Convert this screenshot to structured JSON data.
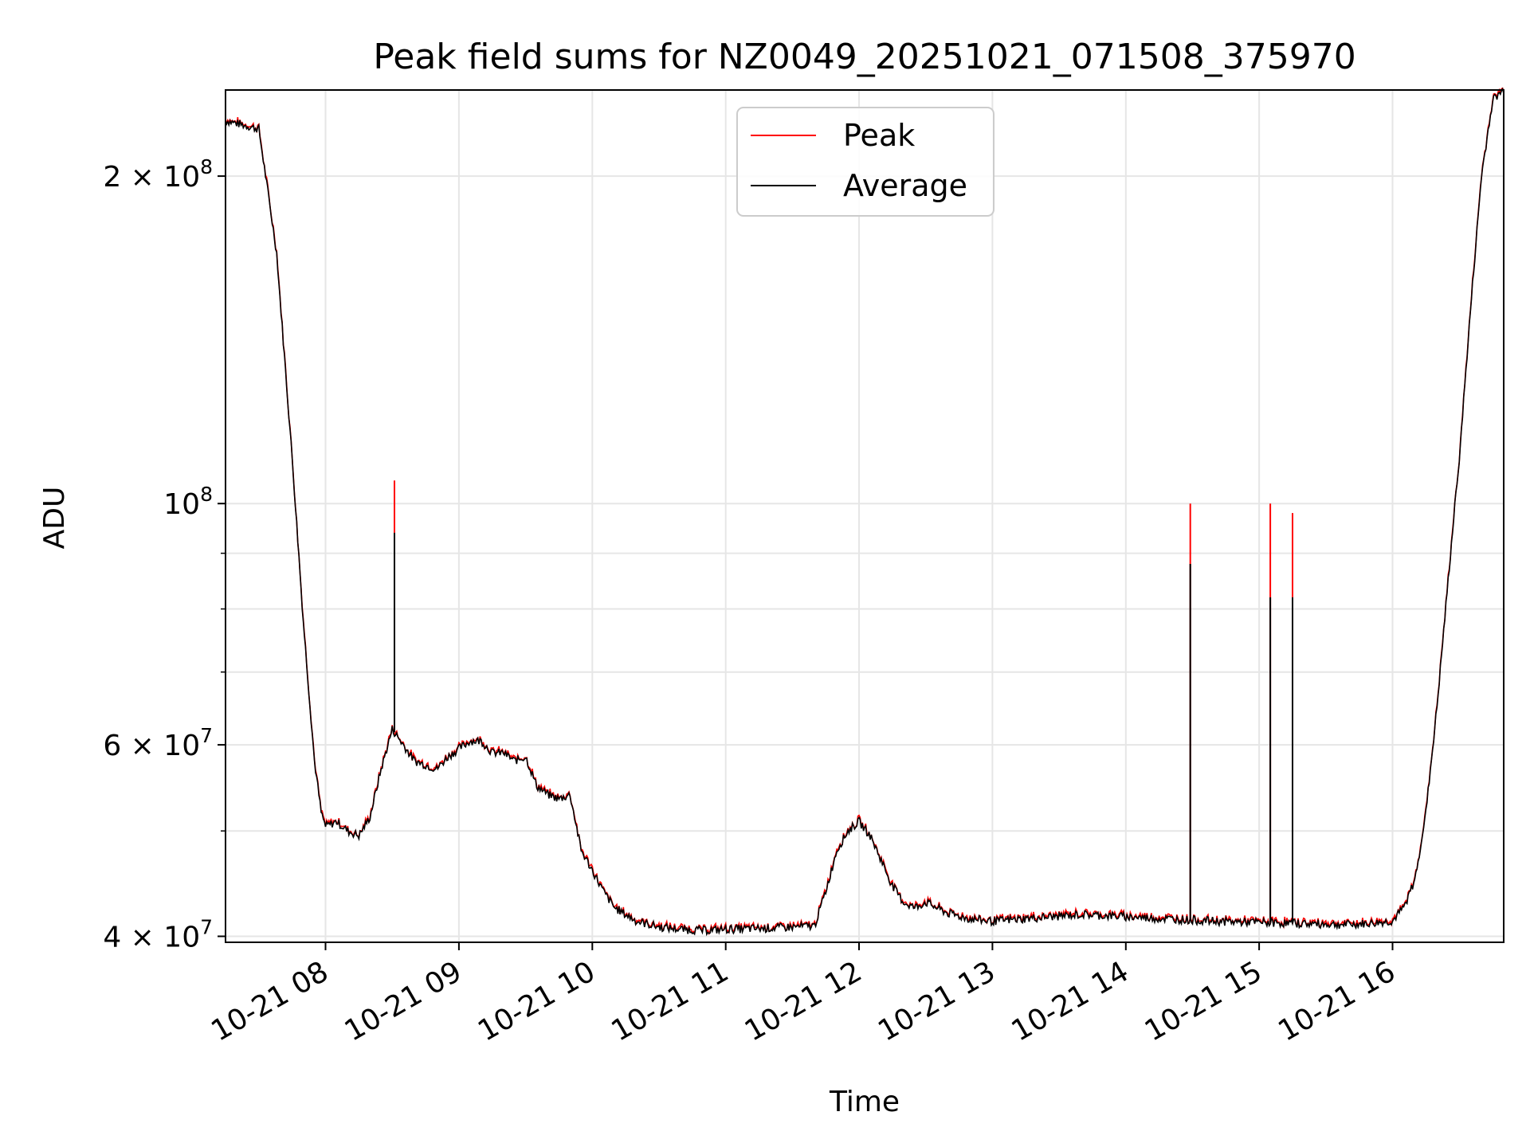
{
  "chart_data": {
    "type": "line",
    "title": "Peak field sums for NZ0049_20251021_071508_375970",
    "xlabel": "Time",
    "ylabel": "ADU",
    "yscale": "log",
    "ylim": [
      39500000,
      240000000
    ],
    "xlim": [
      "2025-10-21T07:15",
      "2025-10-21T16:50"
    ],
    "grid": true,
    "legend_position": "top-center",
    "x_ticks": [
      "10-21 08",
      "10-21 09",
      "10-21 10",
      "10-21 11",
      "10-21 12",
      "10-21 13",
      "10-21 14",
      "10-21 15",
      "10-21 16"
    ],
    "y_ticks": [
      {
        "value": 40000000,
        "label_mantissa": "4",
        "label_exponent": "7"
      },
      {
        "value": 60000000,
        "label_mantissa": "6",
        "label_exponent": "7"
      },
      {
        "value": 100000000,
        "label_mantissa": "",
        "label_exponent": "8"
      },
      {
        "value": 200000000,
        "label_mantissa": "2",
        "label_exponent": "8"
      }
    ],
    "series": [
      {
        "name": "Average",
        "color": "#000000",
        "x": [
          "07:15",
          "07:30",
          "07:38",
          "07:45",
          "07:50",
          "07:55",
          "07:58",
          "08:00",
          "08:05",
          "08:10",
          "08:15",
          "08:20",
          "08:25",
          "08:30",
          "08:35",
          "08:40",
          "08:45",
          "08:50",
          "08:55",
          "09:00",
          "09:05",
          "09:10",
          "09:15",
          "09:20",
          "09:25",
          "09:30",
          "09:35",
          "09:40",
          "09:45",
          "09:50",
          "09:55",
          "10:00",
          "10:05",
          "10:10",
          "10:20",
          "10:30",
          "10:40",
          "10:50",
          "11:00",
          "11:20",
          "11:40",
          "11:45",
          "11:50",
          "11:55",
          "12:00",
          "12:05",
          "12:10",
          "12:15",
          "12:20",
          "12:25",
          "12:30",
          "12:40",
          "12:50",
          "13:00",
          "13:20",
          "13:40",
          "14:00",
          "14:20",
          "14:40",
          "15:00",
          "15:20",
          "15:40",
          "15:50",
          "16:00",
          "16:05",
          "16:10",
          "16:15",
          "16:20",
          "16:25",
          "16:30",
          "16:35",
          "16:40",
          "16:45",
          "16:50"
        ],
        "y": [
          225000000,
          221000000,
          170000000,
          110000000,
          78000000,
          58000000,
          52000000,
          50500000,
          51000000,
          50000000,
          49500000,
          51500000,
          57000000,
          62000000,
          60000000,
          58000000,
          57500000,
          57000000,
          58500000,
          59500000,
          60500000,
          60500000,
          59000000,
          59000000,
          58000000,
          58500000,
          55000000,
          54000000,
          53500000,
          54000000,
          48000000,
          46000000,
          44000000,
          42500000,
          41300000,
          40800000,
          40600000,
          40500000,
          40600000,
          40700000,
          40900000,
          44000000,
          48000000,
          50000000,
          51000000,
          49500000,
          47000000,
          44500000,
          43000000,
          42500000,
          43000000,
          42000000,
          41500000,
          41300000,
          41600000,
          41900000,
          41700000,
          41500000,
          41300000,
          41200000,
          41100000,
          41000000,
          41100000,
          41300000,
          42500000,
          45000000,
          52000000,
          65000000,
          85000000,
          110000000,
          150000000,
          200000000,
          235000000,
          240000000
        ]
      },
      {
        "name": "Peak",
        "color": "#ff0000",
        "spikes": [
          {
            "x": "08:31",
            "y": 105000000,
            "avg": 94000000
          },
          {
            "x": "14:29",
            "y": 100000000,
            "avg": 88000000
          },
          {
            "x": "15:05",
            "y": 100000000,
            "avg": 82000000
          },
          {
            "x": "15:15",
            "y": 98000000,
            "avg": 82000000
          }
        ]
      }
    ]
  }
}
